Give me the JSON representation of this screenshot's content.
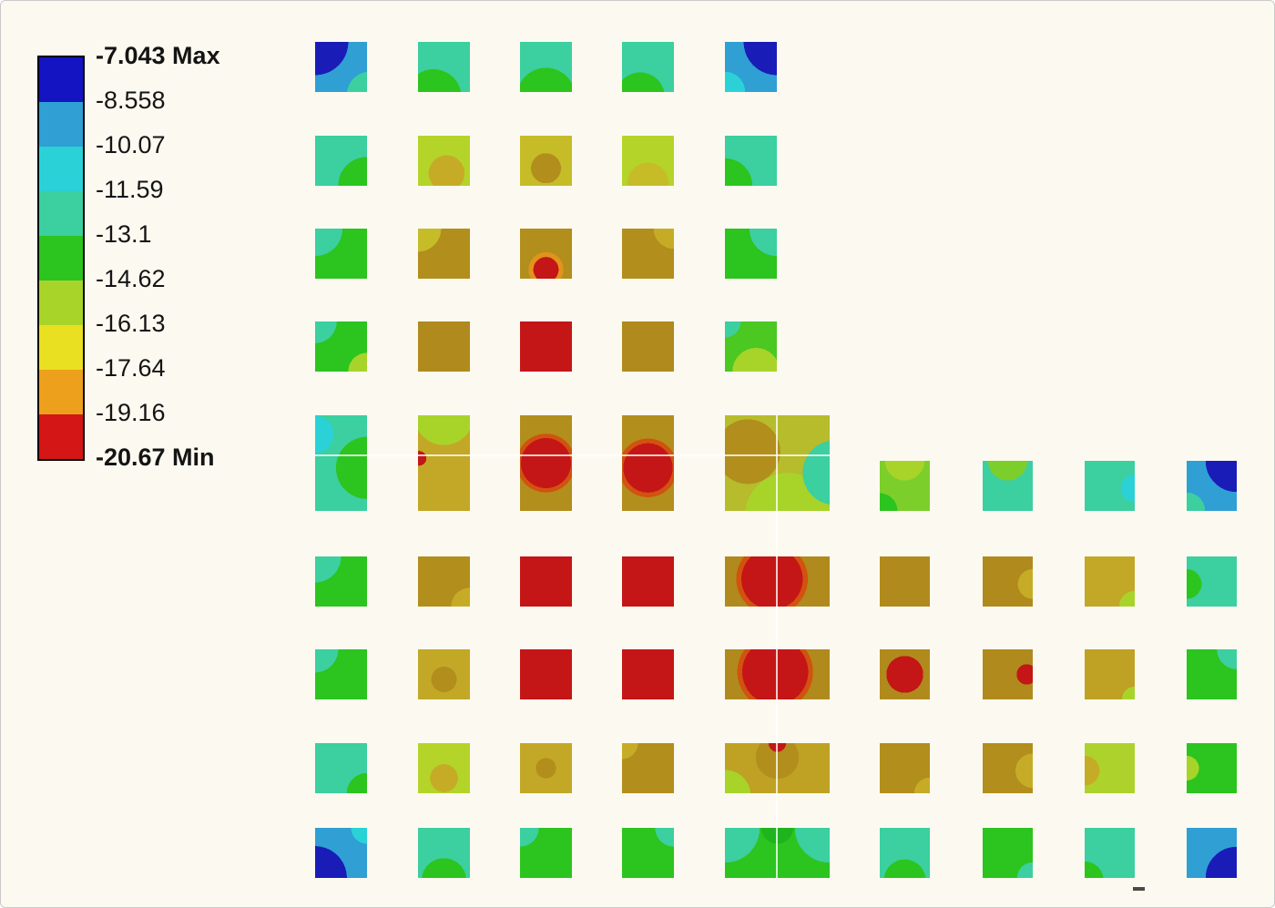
{
  "page": {
    "background": "#fcfaf0",
    "border_color": "#c9c9c9"
  },
  "chart_data": {
    "type": "heatmap",
    "description": "FEA contour result plot of an L-shaped periodic grid of square elements colored by value",
    "legend": {
      "tick_labels": [
        "-7.043 Max",
        "-8.558",
        "-10.07",
        "-11.59",
        "-13.1",
        "-14.62",
        "-16.13",
        "-17.64",
        "-19.16",
        "-20.67 Min"
      ],
      "band_colors": [
        "#1414c2",
        "#2f9fd4",
        "#2ad2d8",
        "#3ccfa0",
        "#2cc41e",
        "#a8d42a",
        "#e8e020",
        "#eda01c",
        "#d41616"
      ],
      "value_max": -7.043,
      "value_min": -20.67,
      "text_color": "#141414",
      "position": "top-left"
    },
    "grid": {
      "tall_row": 4,
      "wide_col": 4,
      "cells": [
        [
          0,
          0,
          "#2f9fd4",
          [
            [
              "#1a1cb8",
              "0% 0%",
              46
            ],
            [
              "#3ccfa0",
              "105% 105%",
              30
            ]
          ]
        ],
        [
          0,
          1,
          "#3ccfa0",
          [
            [
              "#2cc41e",
              "30% 110%",
              42
            ]
          ]
        ],
        [
          0,
          2,
          "#3ccfa0",
          [
            [
              "#2cc41e",
              "50% 110%",
              48
            ]
          ]
        ],
        [
          0,
          3,
          "#3ccfa0",
          [
            [
              "#2cc41e",
              "35% 110%",
              38
            ]
          ]
        ],
        [
          0,
          4,
          "#2f9fd4",
          [
            [
              "#1a1cb8",
              "100% 0%",
              46
            ],
            [
              "#2ad2d8",
              "0% 100%",
              28
            ]
          ]
        ],
        [
          1,
          0,
          "#3ccfa0",
          [
            [
              "#2cc41e",
              "100% 100%",
              40
            ]
          ]
        ],
        [
          1,
          1,
          "#b4d42a",
          [
            [
              "#c6ac26",
              "55% 75%",
              38
            ]
          ]
        ],
        [
          1,
          2,
          "#c6bc28",
          [
            [
              "#b28e1c",
              "50% 65%",
              36
            ]
          ]
        ],
        [
          1,
          3,
          "#b4d42a",
          [
            [
              "#c6bc28",
              "50% 95%",
              38
            ]
          ]
        ],
        [
          1,
          4,
          "#3ccfa0",
          [
            [
              "#2cc41e",
              "0% 100%",
              38
            ]
          ]
        ],
        [
          2,
          0,
          "#2cc41e",
          [
            [
              "#3ccfa0",
              "0% 0%",
              38
            ]
          ]
        ],
        [
          2,
          1,
          "#b28e1c",
          [
            [
              "#c6bc28",
              "0% 0%",
              32
            ]
          ]
        ],
        [
          2,
          2,
          "#b28e1c",
          [
            [
              "#c41616",
              "50% 82%",
              26
            ],
            [
              "#e0941c",
              "50% 82%",
              36
            ]
          ]
        ],
        [
          2,
          3,
          "#b28e1c",
          [
            [
              "#c6ac26",
              "100% 0%",
              28
            ]
          ]
        ],
        [
          2,
          4,
          "#2cc41e",
          [
            [
              "#3ccfa0",
              "100% 0%",
              38
            ]
          ]
        ],
        [
          3,
          0,
          "#2cc41e",
          [
            [
              "#3ccfa0",
              "0% 0%",
              30
            ],
            [
              "#a8d42a",
              "100% 100%",
              26
            ]
          ]
        ],
        [
          3,
          1,
          "#b08a1c",
          []
        ],
        [
          3,
          2,
          "#c41616",
          []
        ],
        [
          3,
          3,
          "#b08a1c",
          []
        ],
        [
          3,
          4,
          "#4cc822",
          [
            [
              "#a8d42a",
              "60% 100%",
              40
            ],
            [
              "#3ccfa0",
              "0% 0%",
              22
            ]
          ]
        ],
        [
          4,
          0,
          "#3ccfa0",
          [
            [
              "#2cc41e",
              "100% 55%",
              42
            ],
            [
              "#2ad2d8",
              "0% 20%",
              20
            ]
          ]
        ],
        [
          4,
          1,
          "#c2a826",
          [
            [
              "#a8d42a",
              "50% 0%",
              30
            ],
            [
              "#c41616",
              "2% 45%",
              10
            ]
          ]
        ],
        [
          4,
          2,
          "#b28e1c",
          [
            [
              "#c41616",
              "50% 50%",
              46
            ],
            [
              "#d2520f",
              "50% 50%",
              54
            ]
          ]
        ],
        [
          4,
          3,
          "#b28e1c",
          [
            [
              "#c41616",
              "50% 55%",
              42
            ],
            [
              "#d2520f",
              "50% 55%",
              50
            ]
          ]
        ],
        [
          4,
          4,
          "#b6bc2c",
          [
            [
              "#b28e1c",
              "22% 38%",
              32
            ],
            [
              "#3ccfa0",
              "105% 60%",
              26
            ],
            [
              "#a8d42a",
              "60% 105%",
              36
            ]
          ]
        ],
        [
          4,
          5,
          "#7ccf2a",
          [
            [
              "#a8d42a",
              "50% 0%",
              35
            ],
            [
              "#2cc41e",
              "0% 100%",
              25
            ]
          ]
        ],
        [
          4,
          6,
          "#3ccfa0",
          [
            [
              "#7ccf2a",
              "50% 0%",
              35
            ]
          ]
        ],
        [
          4,
          7,
          "#3ccfa0",
          [
            [
              "#2ad2d8",
              "100% 55%",
              24
            ]
          ]
        ],
        [
          4,
          8,
          "#2f9fd4",
          [
            [
              "#1a1cb8",
              "100% 0%",
              44
            ],
            [
              "#3ccfa0",
              "0% 100%",
              26
            ]
          ]
        ],
        [
          5,
          0,
          "#2cc41e",
          [
            [
              "#3ccfa0",
              "0% 0%",
              36
            ]
          ]
        ],
        [
          5,
          1,
          "#b28e1c",
          [
            [
              "#c6ac26",
              "100% 100%",
              26
            ]
          ]
        ],
        [
          5,
          2,
          "#c41616",
          []
        ],
        [
          5,
          3,
          "#c41616",
          []
        ],
        [
          5,
          4,
          "#b08a1c",
          [
            [
              "#c41616",
              "45% 45%",
              48
            ],
            [
              "#d2520f",
              "45% 45%",
              56
            ]
          ]
        ],
        [
          5,
          5,
          "#b08a1c",
          []
        ],
        [
          5,
          6,
          "#b08a1c",
          [
            [
              "#c6ac26",
              "100% 55%",
              26
            ]
          ]
        ],
        [
          5,
          7,
          "#c2a826",
          [
            [
              "#a8d42a",
              "100% 100%",
              22
            ]
          ]
        ],
        [
          5,
          8,
          "#3ccfa0",
          [
            [
              "#2cc41e",
              "0% 55%",
              26
            ]
          ]
        ],
        [
          6,
          0,
          "#2cc41e",
          [
            [
              "#3ccfa0",
              "0% 0%",
              32
            ]
          ]
        ],
        [
          6,
          1,
          "#c2a826",
          [
            [
              "#b28e1c",
              "50% 60%",
              32
            ]
          ]
        ],
        [
          6,
          2,
          "#c41616",
          []
        ],
        [
          6,
          3,
          "#c41616",
          []
        ],
        [
          6,
          4,
          "#b08a1c",
          [
            [
              "#c41616",
              "48% 45%",
              54
            ],
            [
              "#d2520f",
              "48% 45%",
              62
            ]
          ]
        ],
        [
          6,
          5,
          "#b08a1c",
          [
            [
              "#c41616",
              "50% 50%",
              52
            ]
          ]
        ],
        [
          6,
          6,
          "#b08a1c",
          [
            [
              "#c41616",
              "88% 50%",
              20
            ]
          ]
        ],
        [
          6,
          7,
          "#bfa224",
          [
            [
              "#a8d42a",
              "100% 100%",
              18
            ]
          ]
        ],
        [
          6,
          8,
          "#2cc41e",
          [
            [
              "#3ccfa0",
              "100% 0%",
              28
            ]
          ]
        ],
        [
          7,
          0,
          "#3ccfa0",
          [
            [
              "#2cc41e",
              "100% 100%",
              28
            ]
          ]
        ],
        [
          7,
          1,
          "#b4d42a",
          [
            [
              "#c6ac26",
              "50% 70%",
              32
            ]
          ]
        ],
        [
          7,
          2,
          "#c2a826",
          [
            [
              "#b28e1c",
              "50% 50%",
              28
            ]
          ]
        ],
        [
          7,
          3,
          "#b28e1c",
          [
            [
              "#c6ac26",
              "0% 0%",
              22
            ]
          ]
        ],
        [
          7,
          4,
          "#bfa224",
          [
            [
              "#c41616",
              "50% 0%",
              12
            ],
            [
              "#b28e1c",
              "50% 28%",
              34
            ],
            [
              "#a8d42a",
              "0% 105%",
              22
            ]
          ]
        ],
        [
          7,
          5,
          "#b28e1c",
          [
            [
              "#c6ac26",
              "100% 100%",
              22
            ]
          ]
        ],
        [
          7,
          6,
          "#b28e1c",
          [
            [
              "#c6ac26",
              "100% 55%",
              30
            ]
          ]
        ],
        [
          7,
          7,
          "#aed22c",
          [
            [
              "#c6ac26",
              "0% 55%",
              26
            ]
          ]
        ],
        [
          7,
          8,
          "#2cc41e",
          [
            [
              "#a8d42a",
              "0% 50%",
              22
            ]
          ]
        ],
        [
          8,
          0,
          "#2f9fd4",
          [
            [
              "#1a1cb8",
              "0% 100%",
              44
            ],
            [
              "#2ad2d8",
              "100% 0%",
              22
            ]
          ]
        ],
        [
          8,
          1,
          "#3ccfa0",
          [
            [
              "#2cc41e",
              "50% 105%",
              38
            ]
          ]
        ],
        [
          8,
          2,
          "#2cc41e",
          [
            [
              "#3ccfa0",
              "0% 0%",
              26
            ]
          ]
        ],
        [
          8,
          3,
          "#2cc41e",
          [
            [
              "#3ccfa0",
              "100% 0%",
              26
            ]
          ]
        ],
        [
          8,
          4,
          "#2cc41e",
          [
            [
              "#3ccfa0",
              "0% 0%",
              30
            ],
            [
              "#3ccfa0",
              "100% 0%",
              30
            ],
            [
              "#1eb41e",
              "50% 0%",
              22
            ]
          ]
        ],
        [
          8,
          5,
          "#3ccfa0",
          [
            [
              "#2cc41e",
              "50% 105%",
              36
            ]
          ]
        ],
        [
          8,
          6,
          "#2cc41e",
          [
            [
              "#3ccfa0",
              "100% 100%",
              22
            ]
          ]
        ],
        [
          8,
          7,
          "#3ccfa0",
          [
            [
              "#2cc41e",
              "0% 105%",
              26
            ]
          ]
        ],
        [
          8,
          8,
          "#2f9fd4",
          [
            [
              "#1a1cb8",
              "100% 100%",
              44
            ]
          ]
        ]
      ]
    },
    "symmetry_lines": {
      "color": "rgba(255,255,255,0.78)",
      "horizontal": true,
      "vertical": true
    },
    "tick_mark": "-"
  }
}
